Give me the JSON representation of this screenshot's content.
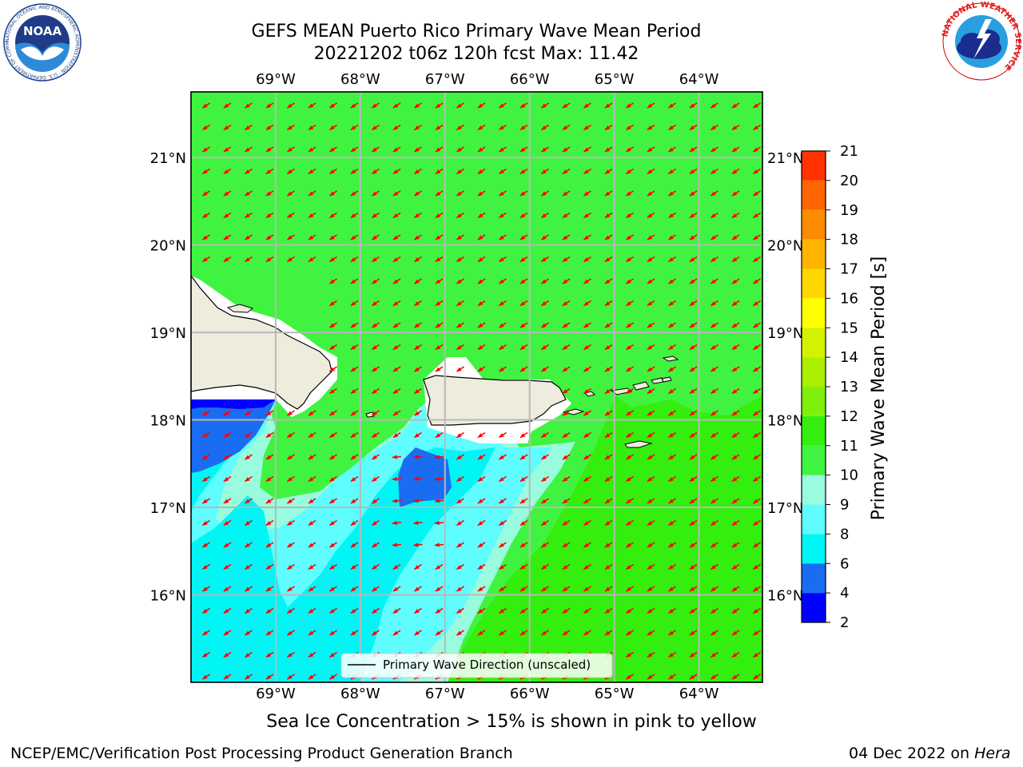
{
  "title": {
    "line1": "GEFS MEAN Puerto Rico Primary Wave Mean Period",
    "line2": "20221202 t06z 120h fcst   Max: 11.42"
  },
  "logos": {
    "noaa": {
      "text": "NOAA",
      "ring_text": "NATIONAL OCEANIC AND ATMOSPHERIC ADMINISTRATION · U.S. DEPARTMENT OF COMMERCE"
    },
    "nws": {
      "ring_text": "NATIONAL WEATHER SERVICE"
    }
  },
  "map": {
    "lon_labels": [
      "69°W",
      "68°W",
      "67°W",
      "66°W",
      "65°W",
      "64°W"
    ],
    "lon_values": [
      -69,
      -68,
      -67,
      -66,
      -65,
      -64
    ],
    "lat_labels": [
      "16°N",
      "17°N",
      "18°N",
      "19°N",
      "20°N",
      "21°N"
    ],
    "lat_values": [
      16,
      17,
      18,
      19,
      20,
      21
    ],
    "extent": {
      "lon_min": -70.0,
      "lon_max": -63.25,
      "lat_min": 15.0,
      "lat_max": 21.75
    },
    "legend_label": "Primary Wave Direction (unscaled)",
    "arrow_direction": "toward southwest",
    "colors": {
      "land": "#eeecdd",
      "field_10_11": "#41f341",
      "field_11_12": "#33ee0e",
      "field_9_10": "#99fcde",
      "field_8_9": "#5ffdfd",
      "field_6_8": "#00f5f5",
      "field_4_6": "#1a6cf0",
      "field_2_4": "#0000ff",
      "arrow": "#ff0000",
      "grid": "#b8b8b8"
    }
  },
  "colorbar": {
    "label": "Primary Wave Mean Period [s]",
    "ticks": [
      "2",
      "4",
      "6",
      "8",
      "9",
      "10",
      "11",
      "12",
      "13",
      "14",
      "15",
      "16",
      "17",
      "18",
      "19",
      "20",
      "21"
    ],
    "colors": [
      "#0000ff",
      "#1a6cf0",
      "#00f5f5",
      "#5ffdfd",
      "#99fcde",
      "#41f341",
      "#33ee0e",
      "#7ff00b",
      "#aaee00",
      "#d2f200",
      "#ffff00",
      "#ffd700",
      "#ffb400",
      "#ff8c00",
      "#ff6400",
      "#ff3200",
      "#ff0000"
    ]
  },
  "footer": {
    "note": "Sea Ice Concentration > 15% is shown in pink to yellow",
    "left": "NCEP/EMC/Verification Post Processing Product Generation Branch",
    "right_prefix": "04 Dec 2022 on ",
    "right_host": "Hera"
  }
}
